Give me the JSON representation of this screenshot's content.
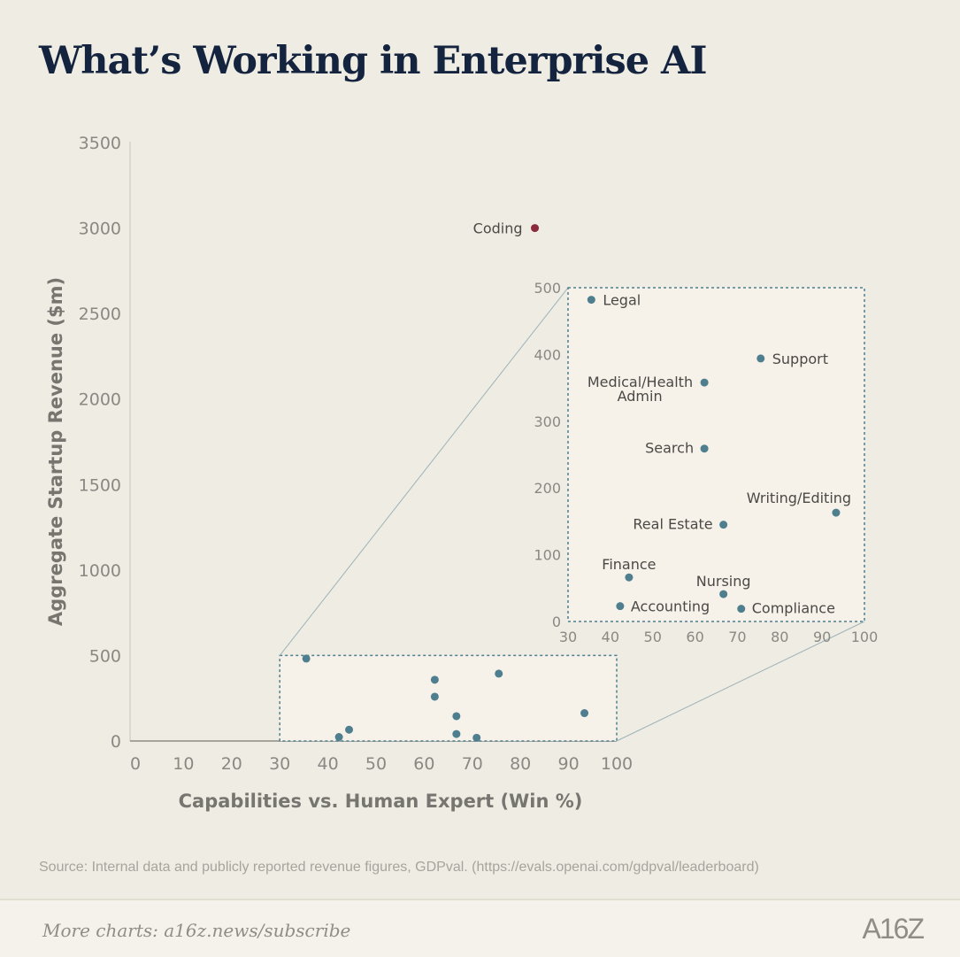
{
  "title": "What’s Working in Enterprise AI",
  "source": "Source: Internal data and publicly reported revenue figures, GDPval. (https://evals.openai.com/gdpval/leaderboard)",
  "footer": {
    "more_charts": "More charts: a16z.news/subscribe",
    "logo": "A16Z"
  },
  "colors": {
    "background": "#efece3",
    "point": "#4f7f8f",
    "highlight": "#8b2a3c",
    "inset_fill": "#f6f2ea",
    "zoom_border": "#4f7f8f"
  },
  "chart_data": [
    {
      "type": "scatter",
      "xlabel": "Capabilities vs. Human Expert (Win %)",
      "ylabel": "Aggregate Startup Revenue ($m)",
      "xlim": [
        0,
        100
      ],
      "ylim": [
        0,
        3500
      ],
      "xticks": [
        0,
        10,
        20,
        30,
        40,
        50,
        60,
        70,
        80,
        90,
        100
      ],
      "yticks": [
        0,
        500,
        1000,
        1500,
        2000,
        2500,
        3000,
        3500
      ],
      "grid": false,
      "points": [
        {
          "label": "Coding",
          "x": 83,
          "y": 3000,
          "highlight": true
        },
        {
          "label": "Legal",
          "x": 35.5,
          "y": 482
        },
        {
          "label": "Support",
          "x": 75.5,
          "y": 394
        },
        {
          "label": "Medical/Health Admin",
          "x": 62.2,
          "y": 358
        },
        {
          "label": "Search",
          "x": 62.2,
          "y": 259
        },
        {
          "label": "Writing/Editing",
          "x": 93.3,
          "y": 163
        },
        {
          "label": "Real Estate",
          "x": 66.7,
          "y": 145
        },
        {
          "label": "Finance",
          "x": 44.4,
          "y": 66
        },
        {
          "label": "Nursing",
          "x": 66.7,
          "y": 41
        },
        {
          "label": "Accounting",
          "x": 42.3,
          "y": 23
        },
        {
          "label": "Compliance",
          "x": 70.9,
          "y": 19
        }
      ]
    },
    {
      "type": "scatter",
      "xlim": [
        30,
        100
      ],
      "ylim": [
        0,
        500
      ],
      "xticks": [
        30,
        40,
        50,
        60,
        70,
        80,
        90,
        100
      ],
      "yticks": [
        0,
        100,
        200,
        300,
        400,
        500
      ],
      "grid": false,
      "points": "same as main chart, zoomed region x 30–100, y 0–500 with labels"
    }
  ]
}
